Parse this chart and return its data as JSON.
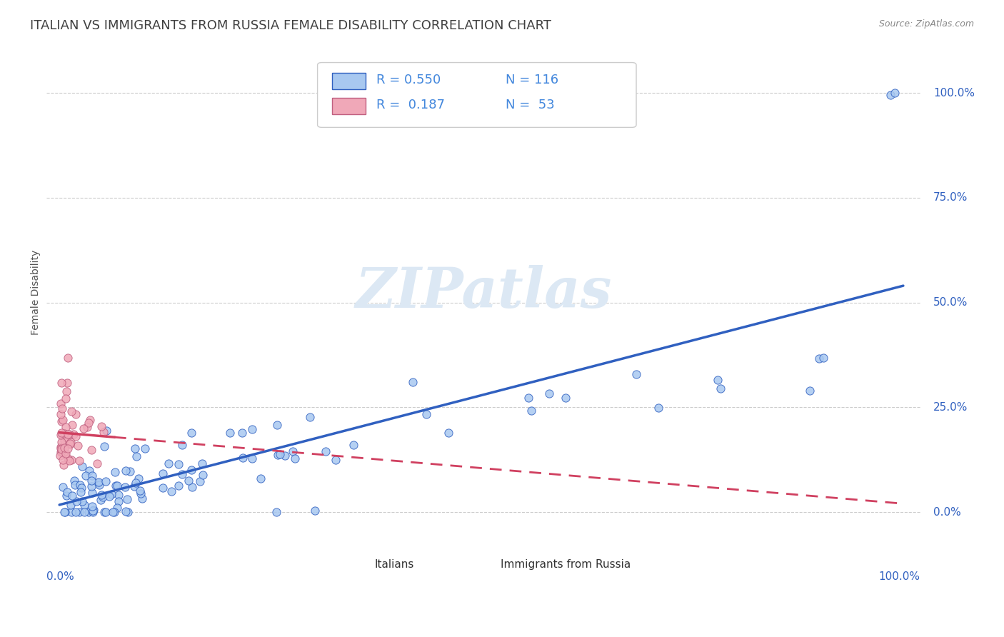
{
  "title": "ITALIAN VS IMMIGRANTS FROM RUSSIA FEMALE DISABILITY CORRELATION CHART",
  "source": "Source: ZipAtlas.com",
  "ylabel": "Female Disability",
  "legend_italians": "Italians",
  "legend_russia": "Immigrants from Russia",
  "r_italian": 0.55,
  "n_italian": 116,
  "r_russia": 0.187,
  "n_russia": 53,
  "color_italian": "#a8c8f0",
  "color_russia": "#f0a8b8",
  "color_line_italian": "#3060c0",
  "color_line_russia": "#d04060",
  "color_title": "#404040",
  "color_legend_text": "#4488dd",
  "background_color": "#ffffff",
  "watermark_color": "#dce8f4"
}
